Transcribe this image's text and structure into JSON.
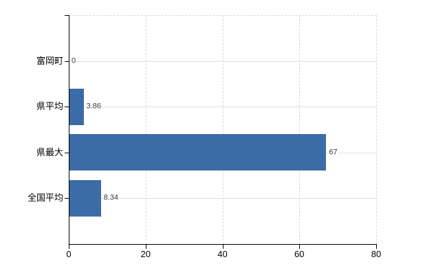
{
  "chart_data": {
    "type": "bar",
    "orientation": "horizontal",
    "title": "",
    "categories": [
      "富岡町",
      "県平均",
      "県最大",
      "全国平均"
    ],
    "values": [
      0,
      3.86,
      67,
      8.34
    ],
    "value_labels": [
      "0",
      "3.86",
      "67",
      "8.34"
    ],
    "xlim": [
      0,
      80
    ],
    "x_ticks": [
      0,
      20,
      40,
      60,
      80
    ],
    "x_tick_labels": [
      "0",
      "20",
      "40",
      "60",
      "80"
    ],
    "bar_color": "#3c6ca8",
    "value_label_color": "#3a3a3a",
    "axis_color": "#000000",
    "gridline_color_vertical": "#d6dcd6",
    "gridline_color_horizontal": "#dde2dd",
    "grid": true,
    "legend_position": "none",
    "background_color": "#ffffff"
  }
}
